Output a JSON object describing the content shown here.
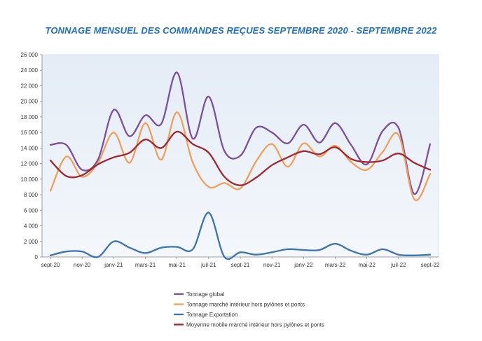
{
  "chart_data": {
    "type": "line",
    "title": "TONNAGE MENSUEL DES COMMANDES REÇUES SEPTEMBRE 2020 - SEPTEMBRE 2022",
    "xlabel": "",
    "ylabel": "",
    "ylim": [
      0,
      26000
    ],
    "y_ticks": [
      "0",
      "2 000",
      "4 000",
      "6 000",
      "8 000",
      "10 000",
      "12 000",
      "14 000",
      "16 000",
      "18 000",
      "20 000",
      "22 000",
      "24 000",
      "26 000"
    ],
    "x_ticks": [
      "sept-20",
      "nov-20",
      "janv-21",
      "mars-21",
      "mai-21",
      "juil-21",
      "sept-21",
      "nov-21",
      "janv-22",
      "mars-22",
      "mai-22",
      "juil-22",
      "sept-22"
    ],
    "categories": [
      "sept-20",
      "oct-20",
      "nov-20",
      "déc-20",
      "janv-21",
      "févr-21",
      "mars-21",
      "avr-21",
      "mai-21",
      "juin-21",
      "juil-21",
      "août-21",
      "sept-21",
      "oct-21",
      "nov-21",
      "déc-21",
      "janv-22",
      "févr-22",
      "mars-22",
      "avr-22",
      "mai-22",
      "juin-22",
      "juil-22",
      "août-22",
      "sept-22"
    ],
    "grid": false,
    "legend_position": "bottom",
    "series": [
      {
        "name": "Tonnage global",
        "color": "#7b4f9e",
        "values": [
          14400,
          14400,
          11200,
          12500,
          18900,
          15500,
          18200,
          17100,
          23700,
          15200,
          20600,
          13600,
          13000,
          16600,
          16000,
          14600,
          17000,
          14700,
          17200,
          14400,
          11900,
          16200,
          16600,
          8100,
          14500
        ]
      },
      {
        "name": "Tonnage marché intérieur hors pylônes et ponts",
        "color": "#f0a05a",
        "values": [
          8500,
          12900,
          10300,
          12100,
          16000,
          12100,
          17200,
          12500,
          18600,
          12100,
          9000,
          9500,
          8800,
          12300,
          14500,
          11600,
          14600,
          12900,
          14300,
          12200,
          11200,
          13500,
          15700,
          7400,
          10700
        ]
      },
      {
        "name": "Tonnage Exportation",
        "color": "#3a73b5",
        "values": [
          200,
          700,
          700,
          0,
          2000,
          1200,
          500,
          1200,
          1300,
          1000,
          5700,
          0,
          600,
          300,
          600,
          1000,
          900,
          900,
          1700,
          800,
          300,
          1000,
          300,
          200,
          300
        ]
      },
      {
        "name": "Moyenne mobile marché intérieur hors pylônes et ponts",
        "color": "#a32630",
        "values": [
          12400,
          10400,
          10500,
          11900,
          12800,
          13400,
          15100,
          14000,
          16100,
          14500,
          13400,
          10300,
          9200,
          10200,
          11800,
          12800,
          13600,
          13200,
          14100,
          12600,
          12200,
          12400,
          13300,
          12100,
          11200
        ]
      }
    ]
  }
}
